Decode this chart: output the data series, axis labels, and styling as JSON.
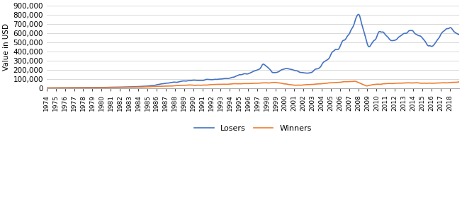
{
  "losers_color": "#4472C4",
  "winners_color": "#ED7D31",
  "ylabel": "Value in USD",
  "ylim": [
    0,
    900000
  ],
  "yticks": [
    0,
    100000,
    200000,
    300000,
    400000,
    500000,
    600000,
    700000,
    800000,
    900000
  ],
  "legend_labels": [
    "Losers",
    "Winners"
  ],
  "bg_color": "#FFFFFF",
  "grid_color": "#D9D9D9",
  "line_width": 1.2,
  "start_year": 1974,
  "end_year": 2018,
  "x_tick_years": [
    1974,
    1975,
    1976,
    1977,
    1978,
    1979,
    1980,
    1981,
    1982,
    1983,
    1984,
    1985,
    1986,
    1987,
    1988,
    1989,
    1990,
    1991,
    1992,
    1993,
    1994,
    1995,
    1996,
    1997,
    1998,
    1999,
    2000,
    2001,
    2002,
    2003,
    2004,
    2005,
    2006,
    2007,
    2008,
    2009,
    2010,
    2011,
    2012,
    2013,
    2014,
    2015,
    2016,
    2017,
    2018
  ]
}
